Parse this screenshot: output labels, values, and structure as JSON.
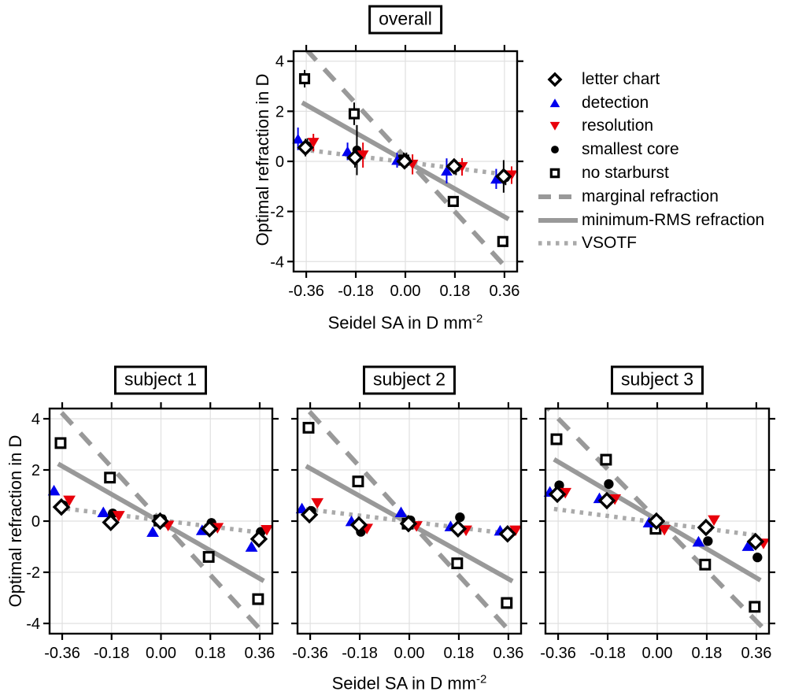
{
  "figure": {
    "type": "scientific-figure",
    "background": "#ffffff"
  },
  "axes": {
    "ylabel": "Optimal refraction in D",
    "xlabel_base": "Seidel SA in D mm",
    "xlabel_exp": "-2",
    "xtick_labels": [
      "-0.36",
      "-0.18",
      "0.00",
      "0.18",
      "0.36"
    ],
    "ytick_labels": [
      "-4",
      "-2",
      "0",
      "2",
      "4"
    ]
  },
  "colors": {
    "detection_blue": "#0000ee",
    "resolution_red": "#e8000b",
    "line_gray": "#999999",
    "dotted_gray": "#aaaaaa",
    "grid_gray": "#e0e0e0",
    "black": "#000000"
  },
  "legend": {
    "items": [
      {
        "marker": "diamond-open",
        "label": "letter chart",
        "color": "#000000"
      },
      {
        "marker": "triangle-up",
        "label": "detection",
        "color": "#0000ee"
      },
      {
        "marker": "triangle-down",
        "label": "resolution",
        "color": "#e8000b"
      },
      {
        "marker": "circle",
        "label": "smallest core",
        "color": "#000000"
      },
      {
        "marker": "square-open",
        "label": "no starburst",
        "color": "#000000"
      },
      {
        "marker": "line-dashed",
        "label": "marginal refraction",
        "color": "#999999"
      },
      {
        "marker": "line-solid",
        "label": "minimum-RMS refraction",
        "color": "#999999"
      },
      {
        "marker": "line-dotted",
        "label": "VSOTF",
        "color": "#aaaaaa"
      }
    ]
  },
  "chart_data": [
    {
      "type": "scatter",
      "title": "overall",
      "xlabel": "Seidel SA in D mm^-2",
      "ylabel": "Optimal refraction in D",
      "x": [
        -0.36,
        -0.18,
        0.0,
        0.18,
        0.36
      ],
      "xticks": [
        -0.36,
        -0.18,
        0.0,
        0.18,
        0.36
      ],
      "yticks": [
        -4,
        -2,
        0,
        2,
        4
      ],
      "xlim": [
        -0.406,
        0.406
      ],
      "ylim": [
        -4.4,
        4.4
      ],
      "series": [
        {
          "name": "letter chart",
          "marker": "diamond-open",
          "color": "#000000",
          "z": 5,
          "values": [
            0.55,
            0.15,
            0.0,
            -0.2,
            -0.6
          ],
          "errors": [
            0.35,
            0.4,
            0.25,
            0.3,
            0.65
          ]
        },
        {
          "name": "detection",
          "marker": "triangle-up",
          "color": "#0000ee",
          "z": 3,
          "values": [
            0.9,
            0.4,
            0.05,
            -0.38,
            -0.7
          ],
          "errors": [
            0.45,
            0.35,
            0.3,
            0.5,
            0.4
          ]
        },
        {
          "name": "resolution",
          "marker": "triangle-down",
          "color": "#e8000b",
          "z": 4,
          "values": [
            0.75,
            0.25,
            -0.12,
            -0.22,
            -0.55
          ],
          "errors": [
            0.35,
            0.5,
            0.4,
            0.35,
            0.35
          ]
        },
        {
          "name": "smallest core",
          "marker": "circle",
          "color": "#000000",
          "z": 2,
          "values": [
            0.62,
            0.45,
            0.05,
            -0.25,
            -0.65
          ],
          "errors": [
            0.3,
            1.0,
            0.3,
            0.3,
            0.3
          ]
        },
        {
          "name": "no starburst",
          "marker": "square-open",
          "color": "#000000",
          "z": 1,
          "values": [
            3.3,
            1.9,
            0.05,
            -1.6,
            -3.2
          ],
          "errors": [
            0.35,
            0.45,
            0.3,
            0.2,
            0.15
          ]
        }
      ],
      "lines": [
        {
          "name": "marginal refraction",
          "style": "dashed",
          "slope": -12.0,
          "intercept": 0.15
        },
        {
          "name": "minimum-RMS refraction",
          "style": "solid",
          "slope": -6.2,
          "intercept": 0.02
        },
        {
          "name": "VSOTF",
          "style": "dotted",
          "slope": -1.35,
          "intercept": -0.03
        }
      ]
    },
    {
      "type": "scatter",
      "title": "subject 1",
      "xlabel": "Seidel SA in D mm^-2",
      "ylabel": "Optimal refraction in D",
      "x": [
        -0.36,
        -0.18,
        0.0,
        0.18,
        0.36
      ],
      "xticks": [
        -0.36,
        -0.18,
        0.0,
        0.18,
        0.36
      ],
      "yticks": [
        -4,
        -2,
        0,
        2,
        4
      ],
      "xlim": [
        -0.406,
        0.406
      ],
      "ylim": [
        -4.4,
        4.4
      ],
      "series": [
        {
          "name": "letter chart",
          "marker": "diamond-open",
          "color": "#000000",
          "z": 5,
          "values": [
            0.55,
            -0.05,
            0.0,
            -0.3,
            -0.7
          ]
        },
        {
          "name": "detection",
          "marker": "triangle-up",
          "color": "#0000ee",
          "z": 3,
          "values": [
            1.2,
            0.35,
            -0.42,
            -0.35,
            -1.0
          ]
        },
        {
          "name": "resolution",
          "marker": "triangle-down",
          "color": "#e8000b",
          "z": 4,
          "values": [
            0.8,
            0.2,
            -0.18,
            -0.27,
            -0.35
          ]
        },
        {
          "name": "smallest core",
          "marker": "circle",
          "color": "#000000",
          "z": 2,
          "values": [
            0.62,
            0.3,
            0.08,
            -0.07,
            -0.42
          ]
        },
        {
          "name": "no starburst",
          "marker": "square-open",
          "color": "#000000",
          "z": 1,
          "values": [
            3.05,
            1.7,
            0.02,
            -1.4,
            -3.05
          ]
        }
      ],
      "lines": [
        {
          "name": "marginal refraction",
          "style": "dashed",
          "slope": -11.7,
          "intercept": 0.0
        },
        {
          "name": "minimum-RMS refraction",
          "style": "solid",
          "slope": -6.1,
          "intercept": -0.05
        },
        {
          "name": "VSOTF",
          "style": "dotted",
          "slope": -1.32,
          "intercept": 0.03
        }
      ]
    },
    {
      "type": "scatter",
      "title": "subject 2",
      "xlabel": "Seidel SA in D mm^-2",
      "ylabel": "Optimal refraction in D",
      "x": [
        -0.36,
        -0.18,
        0.0,
        0.18,
        0.36
      ],
      "xticks": [
        -0.36,
        -0.18,
        0.0,
        0.18,
        0.36
      ],
      "yticks": [
        -4,
        -2,
        0,
        2,
        4
      ],
      "xlim": [
        -0.406,
        0.406
      ],
      "ylim": [
        -4.4,
        4.4
      ],
      "series": [
        {
          "name": "letter chart",
          "marker": "diamond-open",
          "color": "#000000",
          "z": 5,
          "values": [
            0.25,
            -0.15,
            -0.1,
            -0.3,
            -0.5
          ]
        },
        {
          "name": "detection",
          "marker": "triangle-up",
          "color": "#0000ee",
          "z": 3,
          "values": [
            0.5,
            0.0,
            0.35,
            -0.2,
            -0.37
          ]
        },
        {
          "name": "resolution",
          "marker": "triangle-down",
          "color": "#e8000b",
          "z": 4,
          "values": [
            0.7,
            -0.3,
            -0.2,
            -0.37,
            -0.37
          ]
        },
        {
          "name": "smallest core",
          "marker": "circle",
          "color": "#000000",
          "z": 2,
          "values": [
            0.4,
            -0.42,
            0.03,
            0.15,
            -0.45
          ]
        },
        {
          "name": "no starburst",
          "marker": "square-open",
          "color": "#000000",
          "z": 1,
          "values": [
            3.65,
            1.55,
            -0.1,
            -1.65,
            -3.2
          ]
        }
      ],
      "lines": [
        {
          "name": "marginal refraction",
          "style": "dashed",
          "slope": -11.8,
          "intercept": 0.0
        },
        {
          "name": "minimum-RMS refraction",
          "style": "solid",
          "slope": -6.0,
          "intercept": -0.1
        },
        {
          "name": "VSOTF",
          "style": "dotted",
          "slope": -1.3,
          "intercept": -0.02
        }
      ]
    },
    {
      "type": "scatter",
      "title": "subject 3",
      "xlabel": "Seidel SA in D mm^-2",
      "ylabel": "Optimal refraction in D",
      "x": [
        -0.36,
        -0.18,
        0.0,
        0.18,
        0.36
      ],
      "xticks": [
        -0.36,
        -0.18,
        0.0,
        0.18,
        0.36
      ],
      "yticks": [
        -4,
        -2,
        0,
        2,
        4
      ],
      "xlim": [
        -0.406,
        0.406
      ],
      "ylim": [
        -4.4,
        4.4
      ],
      "series": [
        {
          "name": "letter chart",
          "marker": "diamond-open",
          "color": "#000000",
          "z": 5,
          "values": [
            1.05,
            0.8,
            0.0,
            -0.25,
            -0.8
          ]
        },
        {
          "name": "detection",
          "marker": "triangle-up",
          "color": "#0000ee",
          "z": 3,
          "values": [
            1.15,
            0.9,
            -0.05,
            -0.8,
            -0.97
          ]
        },
        {
          "name": "resolution",
          "marker": "triangle-down",
          "color": "#e8000b",
          "z": 4,
          "values": [
            1.1,
            0.85,
            -0.35,
            0.03,
            -0.88
          ]
        },
        {
          "name": "smallest core",
          "marker": "circle",
          "color": "#000000",
          "z": 2,
          "values": [
            1.4,
            1.45,
            0.02,
            -0.78,
            -1.42
          ]
        },
        {
          "name": "no starburst",
          "marker": "square-open",
          "color": "#000000",
          "z": 1,
          "values": [
            3.2,
            2.4,
            -0.3,
            -1.7,
            -3.35
          ]
        }
      ],
      "lines": [
        {
          "name": "marginal refraction",
          "style": "dashed",
          "slope": -11.0,
          "intercept": 0.05
        },
        {
          "name": "minimum-RMS refraction",
          "style": "solid",
          "slope": -6.3,
          "intercept": 0.05
        },
        {
          "name": "VSOTF",
          "style": "dotted",
          "slope": -1.4,
          "intercept": -0.05
        }
      ]
    }
  ]
}
